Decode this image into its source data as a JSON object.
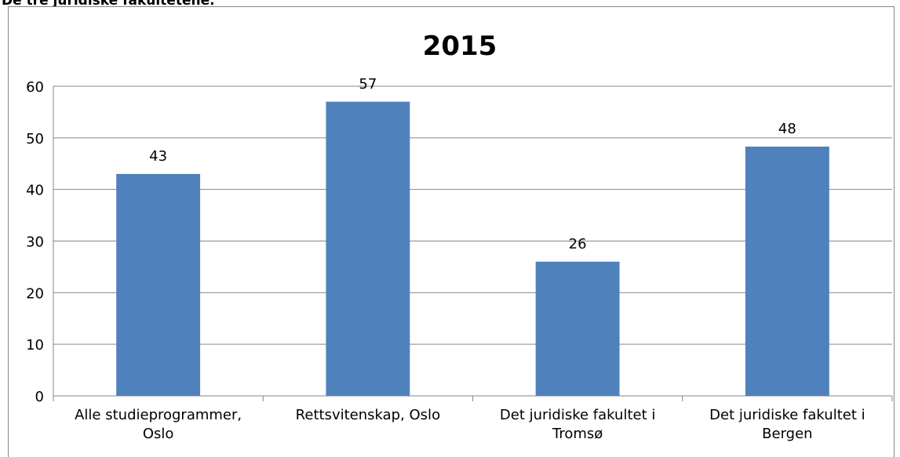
{
  "heading": "De tre juridiske fakultetene.",
  "chart_data": {
    "type": "bar",
    "title": "2015",
    "categories": [
      "Alle studieprogrammer, Oslo",
      "Rettsvitenskap, Oslo",
      "Det juridiske fakultet i Tromsø",
      "Det juridiske fakultet i Bergen"
    ],
    "values": [
      43,
      57,
      26,
      48.3
    ],
    "value_labels": [
      "43",
      "57",
      "26",
      "48"
    ],
    "color": "#4f81bd",
    "ylim": [
      0,
      60
    ],
    "yticks": [
      0,
      10,
      20,
      30,
      40,
      50,
      60
    ],
    "grid": true
  }
}
